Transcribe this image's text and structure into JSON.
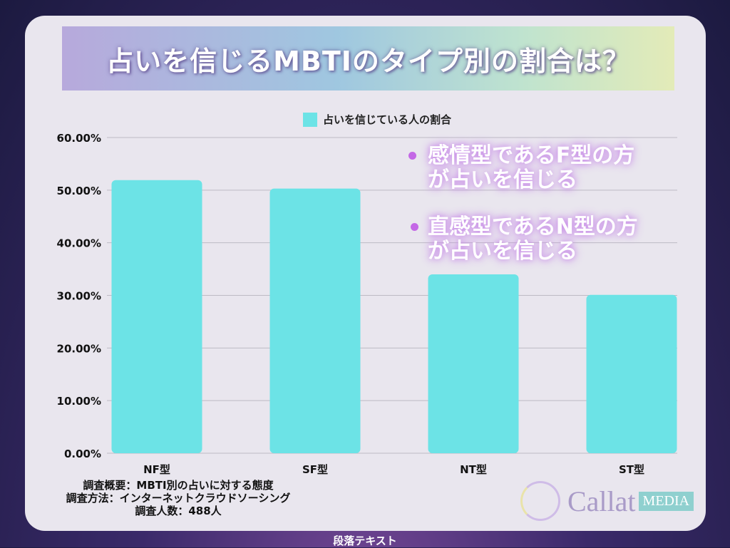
{
  "title": "占いを信じるMBTIのタイプ別の割合は？",
  "chart_data": {
    "type": "bar",
    "categories": [
      "NF型",
      "SF型",
      "NT型",
      "ST型"
    ],
    "series": [
      {
        "name": "占いを信じている人の割合",
        "values": [
          51.9,
          50.3,
          34.0,
          30.1
        ],
        "color": "#6ce3e6"
      }
    ],
    "ylim": [
      0,
      60
    ],
    "yticks": [
      "0.00%",
      "10.00%",
      "20.00%",
      "30.00%",
      "40.00%",
      "50.00%",
      "60.00%"
    ],
    "grid": true,
    "legend": "top"
  },
  "notes": [
    "感情型であるF型の方が占いを信じる",
    "直感型であるN型の方が占いを信じる"
  ],
  "notes_lines": [
    [
      "感情型であるF型の方",
      "が占いを信じる"
    ],
    [
      "直感型であるN型の方",
      "が占いを信じる"
    ]
  ],
  "survey": [
    "調査概要：MBTI別の占いに対する態度",
    "調査方法：インターネットクラウドソーシング",
    "調査人数：488人"
  ],
  "logo": {
    "name": "Callat",
    "badge": "MEDIA"
  },
  "footer": "段落テキスト"
}
